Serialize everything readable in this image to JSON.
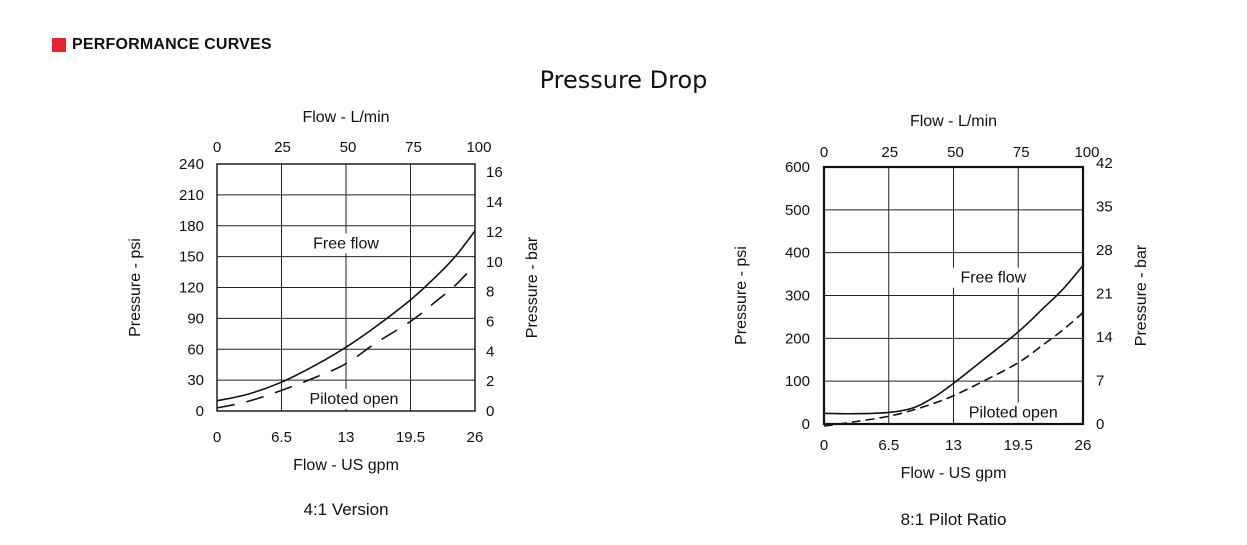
{
  "header": {
    "title": "PERFORMANCE CURVES",
    "accent_color": "#e3262d"
  },
  "main_title": "Pressure Drop",
  "chart_data": [
    {
      "type": "line",
      "caption": "4:1 Version",
      "xlabel": "Flow - US gpm",
      "x2label": "Flow - L/min",
      "ylabel": "Pressure - psi",
      "y2label": "Pressure - bar",
      "xlim": [
        0,
        26
      ],
      "ylim": [
        0,
        240
      ],
      "x_ticks": [
        "0",
        "6.5",
        "13",
        "19.5",
        "26"
      ],
      "x_tick_values": [
        0,
        6.5,
        13,
        19.5,
        26
      ],
      "x2_ticks": [
        "0",
        "25",
        "50",
        "75",
        "100"
      ],
      "x2_tick_values": [
        0,
        6.6,
        13.2,
        19.8,
        26.4
      ],
      "y_ticks": [
        "0",
        "30",
        "60",
        "90",
        "120",
        "150",
        "180",
        "210",
        "240"
      ],
      "y_tick_values": [
        0,
        30,
        60,
        90,
        120,
        150,
        180,
        210,
        240
      ],
      "y2_ticks": [
        "0",
        "2",
        "4",
        "6",
        "8",
        "10",
        "12",
        "14",
        "16"
      ],
      "y2_tick_values": [
        0,
        29,
        58,
        87,
        116,
        145,
        174,
        203,
        232
      ],
      "grid": true,
      "series": [
        {
          "name": "Free flow",
          "dash": "solid",
          "x": [
            0,
            3,
            6.5,
            10,
            13,
            16,
            19.5,
            22,
            24,
            26
          ],
          "y": [
            10,
            16,
            28,
            45,
            62,
            82,
            108,
            130,
            150,
            175
          ]
        },
        {
          "name": "Piloted open",
          "dash": "dashed",
          "x": [
            0,
            3,
            6.5,
            10,
            13,
            16,
            19.5,
            22,
            24,
            26
          ],
          "y": [
            3,
            9,
            20,
            33,
            46,
            66,
            87,
            106,
            122,
            142
          ]
        }
      ],
      "annotations": [
        {
          "text": "Free flow",
          "x": 13,
          "y": 158
        },
        {
          "text": "Piloted open",
          "x": 13.8,
          "y": 7
        }
      ]
    },
    {
      "type": "line",
      "caption": "8:1 Pilot Ratio",
      "xlabel": "Flow - US gpm",
      "x2label": "Flow - L/min",
      "ylabel": "Pressure - psi",
      "y2label": "Pressure - bar",
      "xlim": [
        0,
        26
      ],
      "ylim": [
        0,
        600
      ],
      "x_ticks": [
        "0",
        "6.5",
        "13",
        "19.5",
        "26"
      ],
      "x_tick_values": [
        0,
        6.5,
        13,
        19.5,
        26
      ],
      "x2_ticks": [
        "0",
        "25",
        "50",
        "75",
        "100"
      ],
      "x2_tick_values": [
        0,
        6.6,
        13.2,
        19.8,
        26.4
      ],
      "y_ticks": [
        "0",
        "100",
        "200",
        "300",
        "400",
        "500",
        "600"
      ],
      "y_tick_values": [
        0,
        100,
        200,
        300,
        400,
        500,
        600
      ],
      "y2_ticks": [
        "0",
        "7",
        "14",
        "21",
        "28",
        "35",
        "42"
      ],
      "y2_tick_values": [
        0,
        101.5,
        203,
        304.5,
        406,
        507.5,
        609
      ],
      "grid": true,
      "series": [
        {
          "name": "Free flow",
          "dash": "solid",
          "x": [
            0,
            3,
            6.5,
            9,
            11,
            13,
            16,
            19.5,
            22,
            24,
            26
          ],
          "y": [
            25,
            24,
            27,
            38,
            62,
            95,
            150,
            215,
            270,
            315,
            370
          ]
        },
        {
          "name": "Piloted open",
          "dash": "dashed",
          "x": [
            0,
            3,
            6.5,
            9,
            11,
            13,
            16,
            19.5,
            22,
            24,
            26
          ],
          "y": [
            -5,
            5,
            18,
            33,
            48,
            66,
            100,
            143,
            185,
            220,
            260
          ]
        }
      ],
      "annotations": [
        {
          "text": "Free flow",
          "x": 17,
          "y": 330
        },
        {
          "text": "Piloted open",
          "x": 19,
          "y": 15
        }
      ]
    }
  ]
}
